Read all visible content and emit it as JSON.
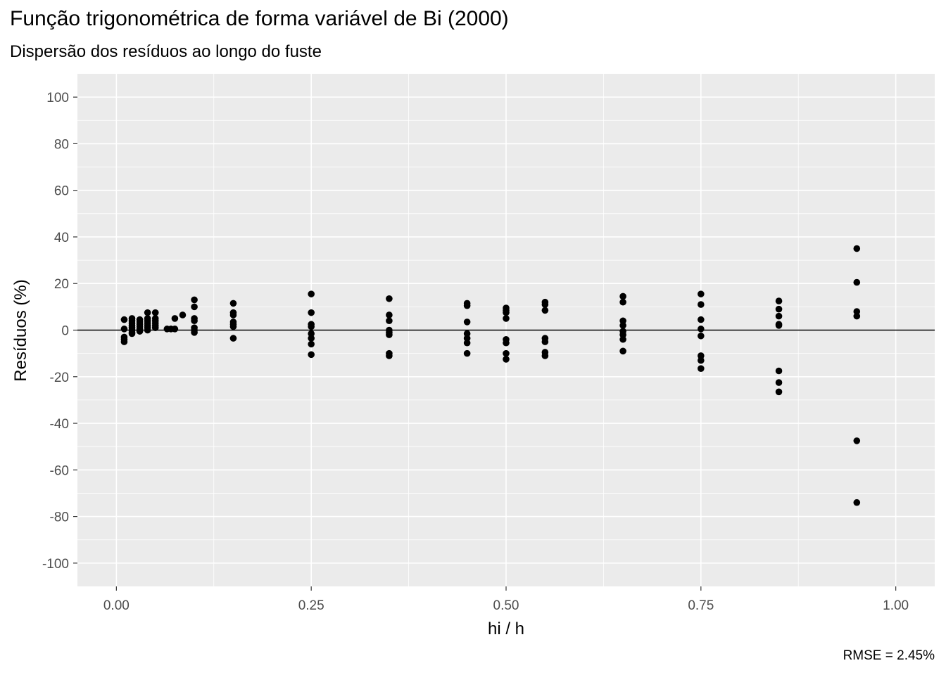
{
  "chart_data": {
    "type": "scatter",
    "title": "Função trigonométrica de forma variável de Bi (2000)",
    "subtitle": "Dispersão dos resíduos ao longo do fuste",
    "xlabel": "hi / h",
    "ylabel": "Resíduos (%)",
    "caption": "RMSE = 2.45%",
    "xlim": [
      -0.05,
      1.05
    ],
    "ylim": [
      -110,
      110
    ],
    "x_ticks": [
      0,
      0.25,
      0.5,
      0.75,
      1
    ],
    "x_tick_labels": [
      "0.00",
      "0.25",
      "0.50",
      "0.75",
      "1.00"
    ],
    "y_ticks": [
      -100,
      -80,
      -60,
      -40,
      -20,
      0,
      20,
      40,
      60,
      80,
      100
    ],
    "y_tick_labels": [
      "-100",
      "-80",
      "-60",
      "-40",
      "-20",
      "0",
      "20",
      "40",
      "60",
      "80",
      "100"
    ],
    "grid": true,
    "reference_line_y": 0,
    "colors": {
      "panel": "#ebebeb",
      "grid": "#ffffff",
      "points": "#000000"
    },
    "points": [
      [
        0.01,
        4.5
      ],
      [
        0.01,
        0.5
      ],
      [
        0.01,
        -3
      ],
      [
        0.01,
        -4
      ],
      [
        0.01,
        -5
      ],
      [
        0.02,
        5
      ],
      [
        0.02,
        4
      ],
      [
        0.02,
        3
      ],
      [
        0.02,
        2
      ],
      [
        0.02,
        1
      ],
      [
        0.02,
        0
      ],
      [
        0.02,
        -1
      ],
      [
        0.02,
        -1.5
      ],
      [
        0.03,
        4.5
      ],
      [
        0.03,
        3.5
      ],
      [
        0.03,
        2.5
      ],
      [
        0.03,
        1.5
      ],
      [
        0.03,
        0.5
      ],
      [
        0.03,
        -0.5
      ],
      [
        0.04,
        7.5
      ],
      [
        0.04,
        5
      ],
      [
        0.04,
        4
      ],
      [
        0.04,
        3
      ],
      [
        0.04,
        2
      ],
      [
        0.04,
        1
      ],
      [
        0.04,
        0
      ],
      [
        0.05,
        7.5
      ],
      [
        0.05,
        5
      ],
      [
        0.05,
        4
      ],
      [
        0.05,
        3
      ],
      [
        0.05,
        2
      ],
      [
        0.05,
        1
      ],
      [
        0.065,
        0.5
      ],
      [
        0.07,
        0.5
      ],
      [
        0.075,
        5
      ],
      [
        0.075,
        0.5
      ],
      [
        0.085,
        6.5
      ],
      [
        0.1,
        13
      ],
      [
        0.1,
        10
      ],
      [
        0.1,
        5
      ],
      [
        0.1,
        4
      ],
      [
        0.1,
        1
      ],
      [
        0.1,
        0
      ],
      [
        0.1,
        -1
      ],
      [
        0.15,
        11.5
      ],
      [
        0.15,
        7.5
      ],
      [
        0.15,
        6.5
      ],
      [
        0.15,
        3.5
      ],
      [
        0.15,
        2.5
      ],
      [
        0.15,
        1.5
      ],
      [
        0.15,
        -3.5
      ],
      [
        0.25,
        15.5
      ],
      [
        0.25,
        7.5
      ],
      [
        0.25,
        2.5
      ],
      [
        0.25,
        1.5
      ],
      [
        0.25,
        -1.5
      ],
      [
        0.25,
        -3.5
      ],
      [
        0.25,
        -6
      ],
      [
        0.25,
        -10.5
      ],
      [
        0.35,
        13.5
      ],
      [
        0.35,
        6.5
      ],
      [
        0.35,
        4
      ],
      [
        0.35,
        0
      ],
      [
        0.35,
        -1
      ],
      [
        0.35,
        -2
      ],
      [
        0.35,
        -10
      ],
      [
        0.35,
        -11
      ],
      [
        0.45,
        11.5
      ],
      [
        0.45,
        10.5
      ],
      [
        0.45,
        3.5
      ],
      [
        0.45,
        -1.5
      ],
      [
        0.45,
        -3.5
      ],
      [
        0.45,
        -5.5
      ],
      [
        0.45,
        -10
      ],
      [
        0.5,
        9.5
      ],
      [
        0.5,
        8.5
      ],
      [
        0.5,
        7.5
      ],
      [
        0.5,
        5
      ],
      [
        0.5,
        -4
      ],
      [
        0.5,
        -5.5
      ],
      [
        0.5,
        -10
      ],
      [
        0.5,
        -12.5
      ],
      [
        0.55,
        12
      ],
      [
        0.55,
        11
      ],
      [
        0.55,
        8.5
      ],
      [
        0.55,
        -3.5
      ],
      [
        0.55,
        -5
      ],
      [
        0.55,
        -9.5
      ],
      [
        0.55,
        -11
      ],
      [
        0.65,
        14.5
      ],
      [
        0.65,
        12
      ],
      [
        0.65,
        4
      ],
      [
        0.65,
        2
      ],
      [
        0.65,
        -0.5
      ],
      [
        0.65,
        -2
      ],
      [
        0.65,
        -4
      ],
      [
        0.65,
        -9
      ],
      [
        0.75,
        15.5
      ],
      [
        0.75,
        11
      ],
      [
        0.75,
        4.5
      ],
      [
        0.75,
        0.5
      ],
      [
        0.75,
        -2.5
      ],
      [
        0.75,
        -11
      ],
      [
        0.75,
        -13
      ],
      [
        0.75,
        -16.5
      ],
      [
        0.85,
        12.5
      ],
      [
        0.85,
        9
      ],
      [
        0.85,
        6
      ],
      [
        0.85,
        2.5
      ],
      [
        0.85,
        2
      ],
      [
        0.85,
        -17.5
      ],
      [
        0.85,
        -22.5
      ],
      [
        0.85,
        -26.5
      ],
      [
        0.95,
        35
      ],
      [
        0.95,
        20.5
      ],
      [
        0.95,
        8
      ],
      [
        0.95,
        6
      ],
      [
        0.95,
        -47.5
      ],
      [
        0.95,
        -74
      ]
    ]
  }
}
